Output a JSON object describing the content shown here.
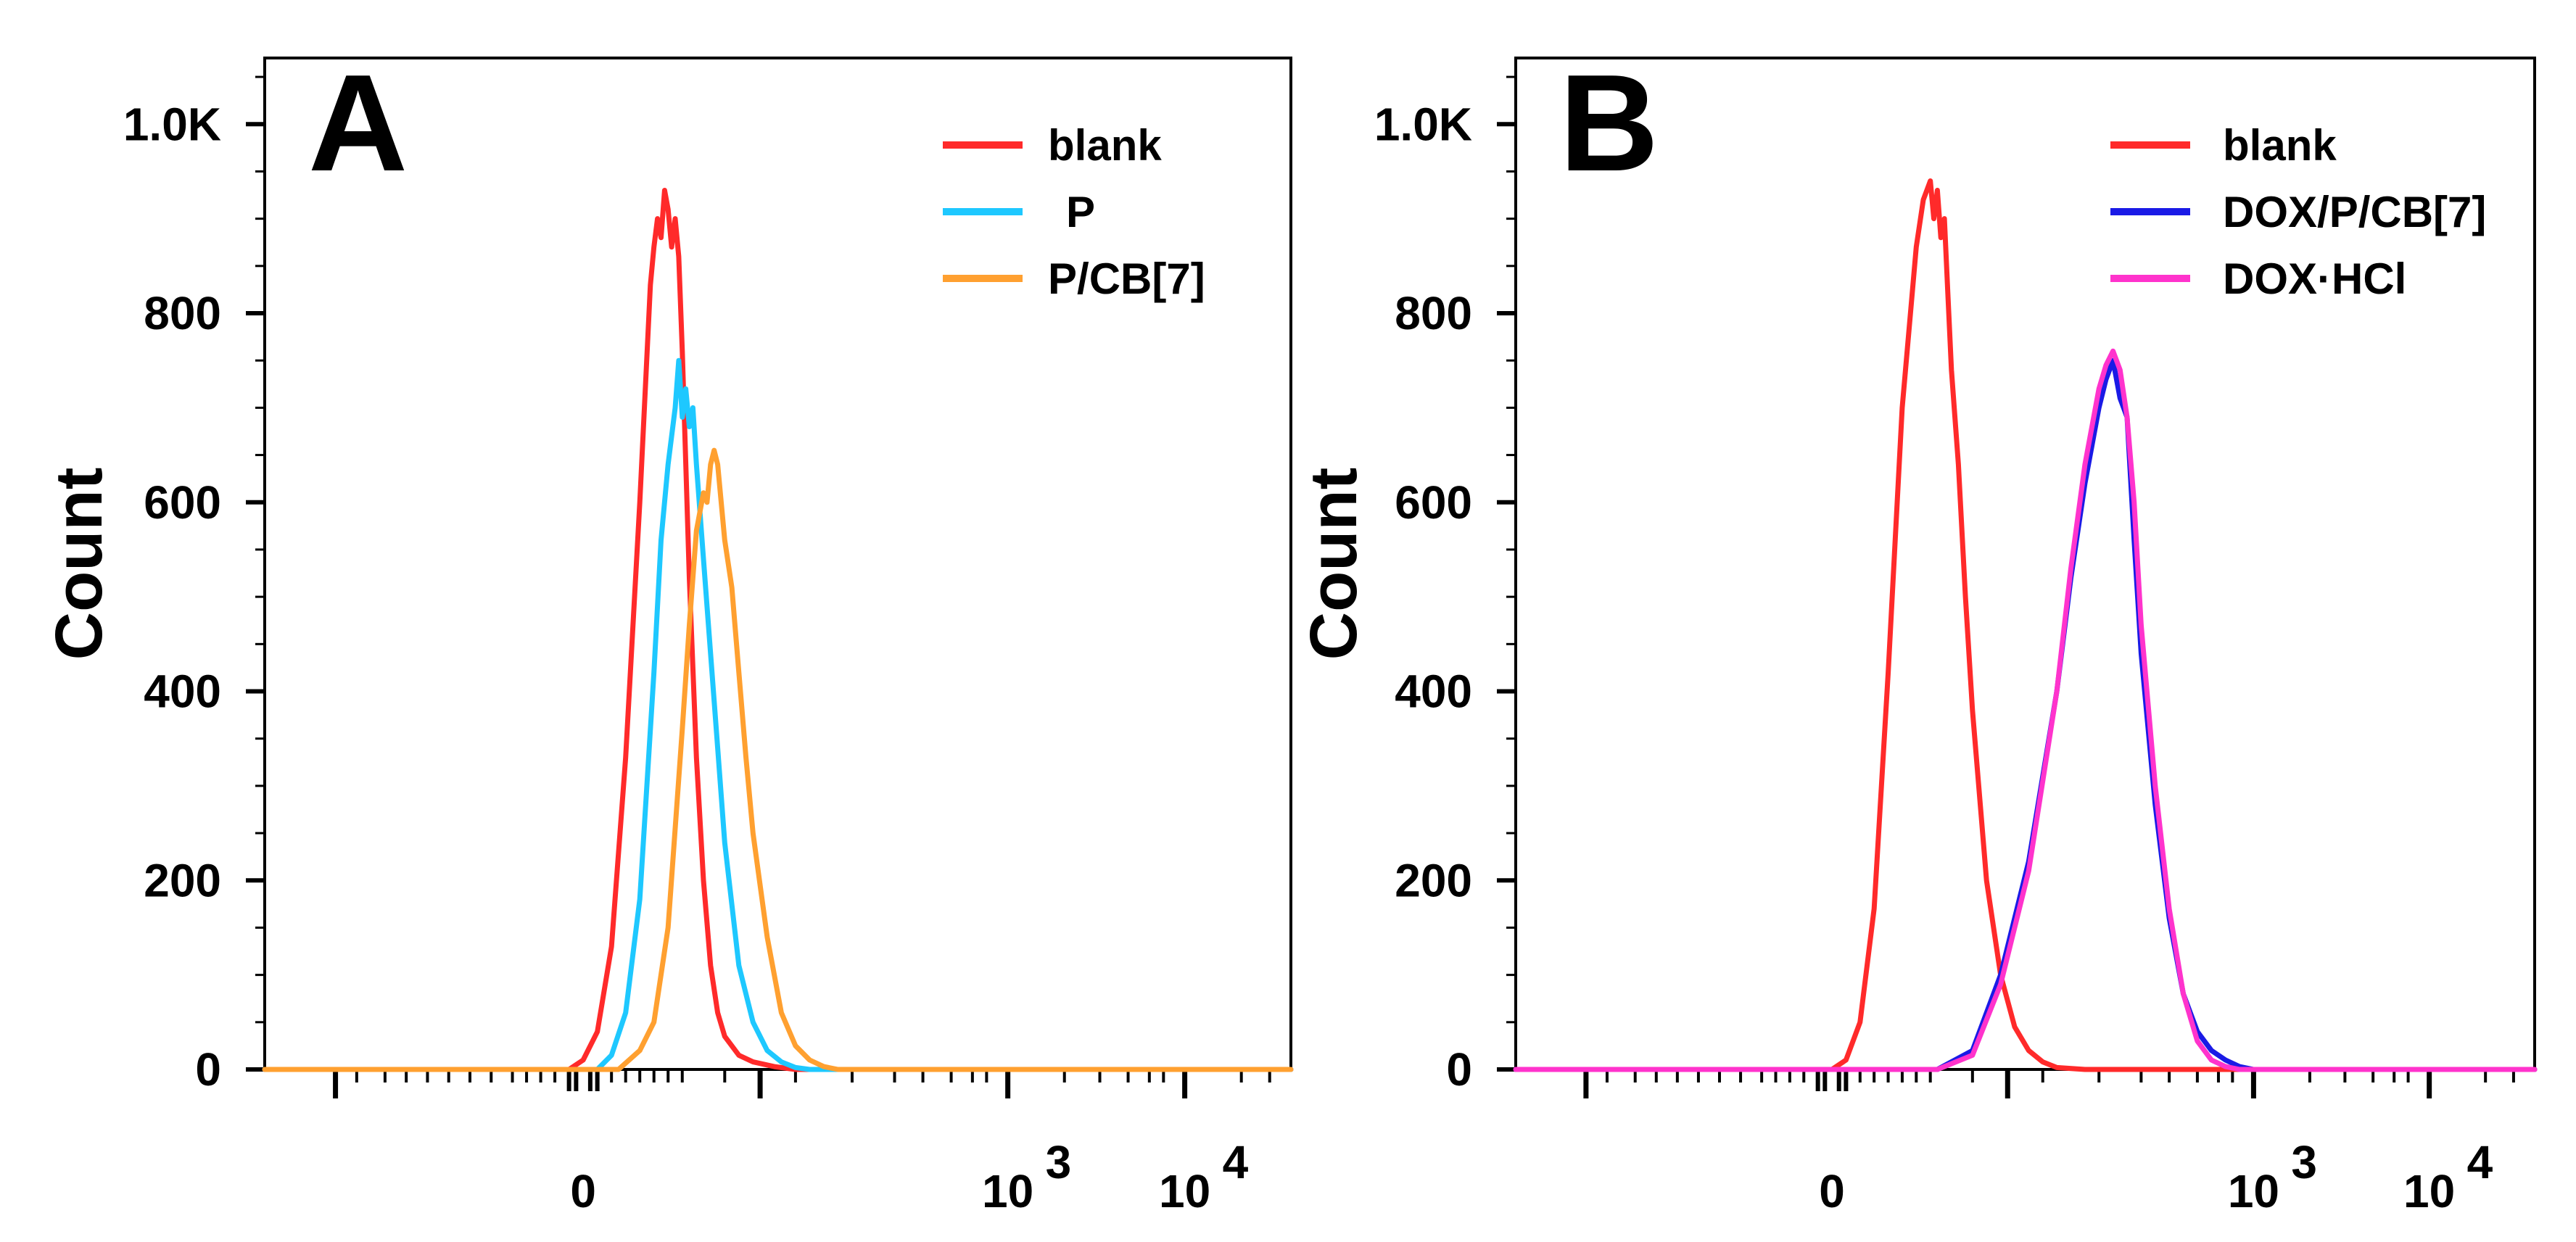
{
  "chart_data": [
    {
      "type": "line",
      "panel_label": "A",
      "ylabel": "Count",
      "xlabel": "",
      "ylim": [
        0,
        1070
      ],
      "y_ticks": [
        {
          "value": 0,
          "label": "0"
        },
        {
          "value": 200,
          "label": "200"
        },
        {
          "value": 400,
          "label": "400"
        },
        {
          "value": 600,
          "label": "600"
        },
        {
          "value": 800,
          "label": "800"
        },
        {
          "value": 1000,
          "label": "1.0K"
        }
      ],
      "x_scale": "biexponential",
      "x_range": [
        -0.45,
        1.0
      ],
      "x_ticks": [
        {
          "value": 0,
          "label_main": "0",
          "label_exp": ""
        },
        {
          "value": 0.6,
          "label_main": "10",
          "label_exp": "3"
        },
        {
          "value": 0.85,
          "label_main": "10",
          "label_exp": "4"
        }
      ],
      "legend": [
        "blank",
        "P",
        "P/CB[7]"
      ],
      "legend_position": "top-right",
      "series": [
        {
          "name": "blank",
          "color": "#ff2a2a",
          "x": [
            -0.45,
            -0.02,
            0.0,
            0.02,
            0.04,
            0.06,
            0.08,
            0.095,
            0.1,
            0.105,
            0.11,
            0.115,
            0.12,
            0.125,
            0.13,
            0.135,
            0.14,
            0.15,
            0.16,
            0.17,
            0.18,
            0.19,
            0.2,
            0.22,
            0.24,
            0.27,
            0.3,
            0.35,
            1.0
          ],
          "y": [
            0,
            0,
            10,
            40,
            130,
            330,
            600,
            830,
            870,
            900,
            880,
            930,
            910,
            870,
            900,
            860,
            760,
            520,
            330,
            200,
            110,
            60,
            35,
            15,
            8,
            3,
            0,
            0,
            0
          ]
        },
        {
          "name": "P",
          "color": "#1ec8ff",
          "x": [
            -0.45,
            0.02,
            0.04,
            0.06,
            0.08,
            0.1,
            0.11,
            0.12,
            0.13,
            0.135,
            0.14,
            0.145,
            0.15,
            0.155,
            0.16,
            0.17,
            0.18,
            0.19,
            0.2,
            0.22,
            0.24,
            0.26,
            0.28,
            0.3,
            0.32,
            0.4,
            1.0
          ],
          "y": [
            0,
            0,
            15,
            60,
            180,
            420,
            560,
            640,
            700,
            750,
            690,
            720,
            680,
            700,
            640,
            540,
            440,
            340,
            240,
            110,
            50,
            20,
            8,
            2,
            0,
            0,
            0
          ]
        },
        {
          "name": "P/CB[7]",
          "color": "#ffa030",
          "x": [
            -0.45,
            0.05,
            0.08,
            0.1,
            0.12,
            0.14,
            0.15,
            0.16,
            0.17,
            0.175,
            0.18,
            0.185,
            0.19,
            0.2,
            0.21,
            0.22,
            0.23,
            0.24,
            0.26,
            0.28,
            0.3,
            0.32,
            0.34,
            0.36,
            0.4,
            1.0
          ],
          "y": [
            0,
            0,
            20,
            50,
            150,
            360,
            470,
            570,
            610,
            600,
            640,
            655,
            640,
            560,
            510,
            420,
            330,
            250,
            140,
            60,
            25,
            10,
            3,
            0,
            0,
            0
          ]
        }
      ]
    },
    {
      "type": "line",
      "panel_label": "B",
      "ylabel": "Count",
      "xlabel": "",
      "ylim": [
        0,
        1070
      ],
      "y_ticks": [
        {
          "value": 0,
          "label": "0"
        },
        {
          "value": 200,
          "label": "200"
        },
        {
          "value": 400,
          "label": "400"
        },
        {
          "value": 600,
          "label": "600"
        },
        {
          "value": 800,
          "label": "800"
        },
        {
          "value": 1000,
          "label": "1.0K"
        }
      ],
      "x_scale": "biexponential",
      "x_range": [
        -0.45,
        1.0
      ],
      "x_ticks": [
        {
          "value": 0,
          "label_main": "0",
          "label_exp": ""
        },
        {
          "value": 0.6,
          "label_main": "10",
          "label_exp": "3"
        },
        {
          "value": 0.85,
          "label_main": "10",
          "label_exp": "4"
        }
      ],
      "legend": [
        "blank",
        "DOX/P/CB[7]",
        "DOX·HCl"
      ],
      "legend_position": "top-right",
      "series": [
        {
          "name": "blank",
          "color": "#ff2a2a",
          "x": [
            -0.45,
            0.0,
            0.02,
            0.04,
            0.06,
            0.08,
            0.1,
            0.12,
            0.13,
            0.14,
            0.145,
            0.15,
            0.155,
            0.16,
            0.165,
            0.17,
            0.18,
            0.19,
            0.2,
            0.22,
            0.24,
            0.26,
            0.28,
            0.3,
            0.32,
            0.36,
            1.0
          ],
          "y": [
            0,
            0,
            10,
            50,
            170,
            420,
            700,
            870,
            920,
            940,
            900,
            930,
            880,
            900,
            820,
            740,
            640,
            500,
            380,
            200,
            100,
            45,
            20,
            8,
            2,
            0,
            0
          ]
        },
        {
          "name": "DOX/P/CB[7]",
          "color": "#1a1ae6",
          "x": [
            -0.45,
            0.15,
            0.2,
            0.24,
            0.28,
            0.32,
            0.34,
            0.36,
            0.38,
            0.39,
            0.4,
            0.41,
            0.42,
            0.43,
            0.44,
            0.46,
            0.48,
            0.5,
            0.52,
            0.54,
            0.56,
            0.58,
            0.6,
            1.0
          ],
          "y": [
            0,
            0,
            20,
            100,
            220,
            400,
            520,
            620,
            700,
            730,
            750,
            710,
            690,
            560,
            440,
            280,
            160,
            80,
            40,
            20,
            10,
            3,
            0,
            0
          ]
        },
        {
          "name": "DOX·HCl",
          "color": "#ff33cc",
          "x": [
            -0.45,
            0.15,
            0.2,
            0.24,
            0.28,
            0.32,
            0.34,
            0.36,
            0.38,
            0.39,
            0.4,
            0.41,
            0.42,
            0.43,
            0.44,
            0.46,
            0.48,
            0.5,
            0.52,
            0.54,
            0.56,
            0.58,
            1.0
          ],
          "y": [
            0,
            0,
            15,
            90,
            210,
            400,
            530,
            640,
            720,
            745,
            760,
            740,
            690,
            600,
            470,
            300,
            170,
            80,
            30,
            10,
            3,
            0,
            0
          ]
        }
      ]
    }
  ]
}
